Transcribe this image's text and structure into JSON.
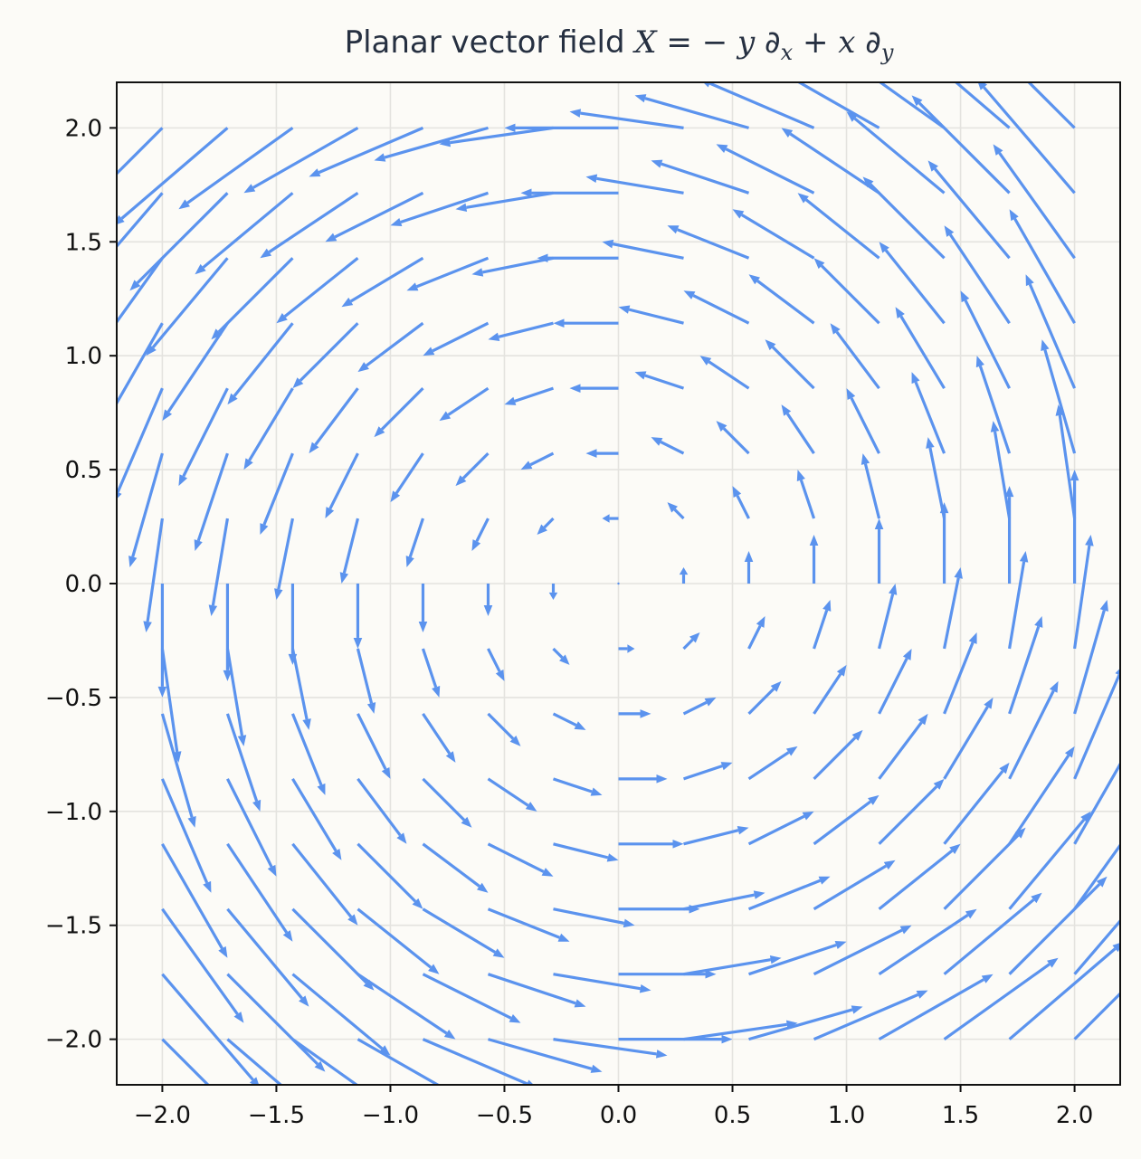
{
  "chart_data": {
    "type": "quiver",
    "title": {
      "prefix": "Planar vector field ",
      "formula_parts": [
        "X",
        " = − ",
        "y",
        " ∂",
        "x",
        " + ",
        "x",
        " ∂",
        "y"
      ]
    },
    "xlabel": "",
    "ylabel": "",
    "xlim": [
      -2.2,
      2.2
    ],
    "ylim": [
      -2.2,
      2.2
    ],
    "x_ticks": [
      -2.0,
      -1.5,
      -1.0,
      -0.5,
      0.0,
      0.5,
      1.0,
      1.5,
      2.0
    ],
    "y_ticks": [
      -2.0,
      -1.5,
      -1.0,
      -0.5,
      0.0,
      0.5,
      1.0,
      1.5,
      2.0
    ],
    "x_tick_labels": [
      "−2.0",
      "−1.5",
      "−1.0",
      "−0.5",
      "0.0",
      "0.5",
      "1.0",
      "1.5",
      "2.0"
    ],
    "y_tick_labels": [
      "−2.0",
      "−1.5",
      "−1.0",
      "−0.5",
      "0.0",
      "0.5",
      "1.0",
      "1.5",
      "2.0"
    ],
    "grid": true,
    "grid_points_x": [
      -2.0,
      -1.7142857,
      -1.4285714,
      -1.1428571,
      -0.8571429,
      -0.5714286,
      -0.2857143,
      0.0,
      0.2857143,
      0.5714286,
      0.8571429,
      1.1428571,
      1.4285714,
      1.7142857,
      2.0
    ],
    "grid_points_y": [
      -2.0,
      -1.7142857,
      -1.4285714,
      -1.1428571,
      -0.8571429,
      -0.5714286,
      -0.2857143,
      0.0,
      0.2857143,
      0.5714286,
      0.8571429,
      1.1428571,
      1.4285714,
      1.7142857,
      2.0
    ],
    "vector_field": {
      "u": "-y",
      "v": "x"
    },
    "arrow_color": "#5b93ee",
    "axis_color": "#111111",
    "grid_color": "#e4e3df",
    "background": "#fcfbf7"
  }
}
